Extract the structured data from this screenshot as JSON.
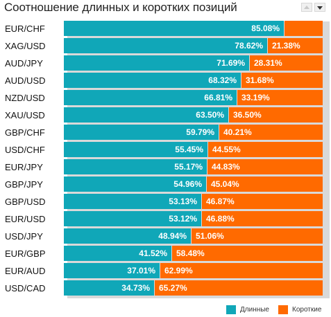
{
  "header": {
    "title": "Соотношение длинных и коротких позиций",
    "sort_up_icon": "triangle-up",
    "sort_down_icon": "triangle-down"
  },
  "legend": {
    "long_label": "Длинные",
    "short_label": "Короткие"
  },
  "colors": {
    "long": "#10a7b8",
    "short": "#ff6a00"
  },
  "chart_data": {
    "type": "bar",
    "stacked": true,
    "orientation": "horizontal",
    "title": "Соотношение длинных и коротких позиций",
    "categories": [
      "EUR/CHF",
      "XAG/USD",
      "AUD/JPY",
      "AUD/USD",
      "NZD/USD",
      "XAU/USD",
      "GBP/CHF",
      "USD/CHF",
      "EUR/JPY",
      "GBP/JPY",
      "GBP/USD",
      "EUR/USD",
      "USD/JPY",
      "EUR/GBP",
      "EUR/AUD",
      "USD/CAD"
    ],
    "series": [
      {
        "name": "Длинные",
        "values": [
          85.08,
          78.62,
          71.69,
          68.32,
          66.81,
          63.5,
          59.79,
          55.45,
          55.17,
          54.96,
          53.13,
          53.12,
          48.94,
          41.52,
          37.01,
          34.73
        ],
        "labels": [
          "85.08%",
          "78.62%",
          "71.69%",
          "68.32%",
          "66.81%",
          "63.50%",
          "59.79%",
          "55.45%",
          "55.17%",
          "54.96%",
          "53.13%",
          "53.12%",
          "48.94%",
          "41.52%",
          "37.01%",
          "34.73%"
        ]
      },
      {
        "name": "Короткие",
        "values": [
          14.92,
          21.38,
          28.31,
          31.68,
          33.19,
          36.5,
          40.21,
          44.55,
          44.83,
          45.04,
          46.87,
          46.88,
          51.06,
          58.48,
          62.99,
          65.27
        ],
        "labels": [
          "",
          "21.38%",
          "28.31%",
          "31.68%",
          "33.19%",
          "36.50%",
          "40.21%",
          "44.55%",
          "44.83%",
          "45.04%",
          "46.87%",
          "46.88%",
          "51.06%",
          "58.48%",
          "62.99%",
          "65.27%"
        ]
      }
    ],
    "xlim": [
      0,
      100
    ],
    "legend_position": "bottom-right",
    "grid": false
  }
}
